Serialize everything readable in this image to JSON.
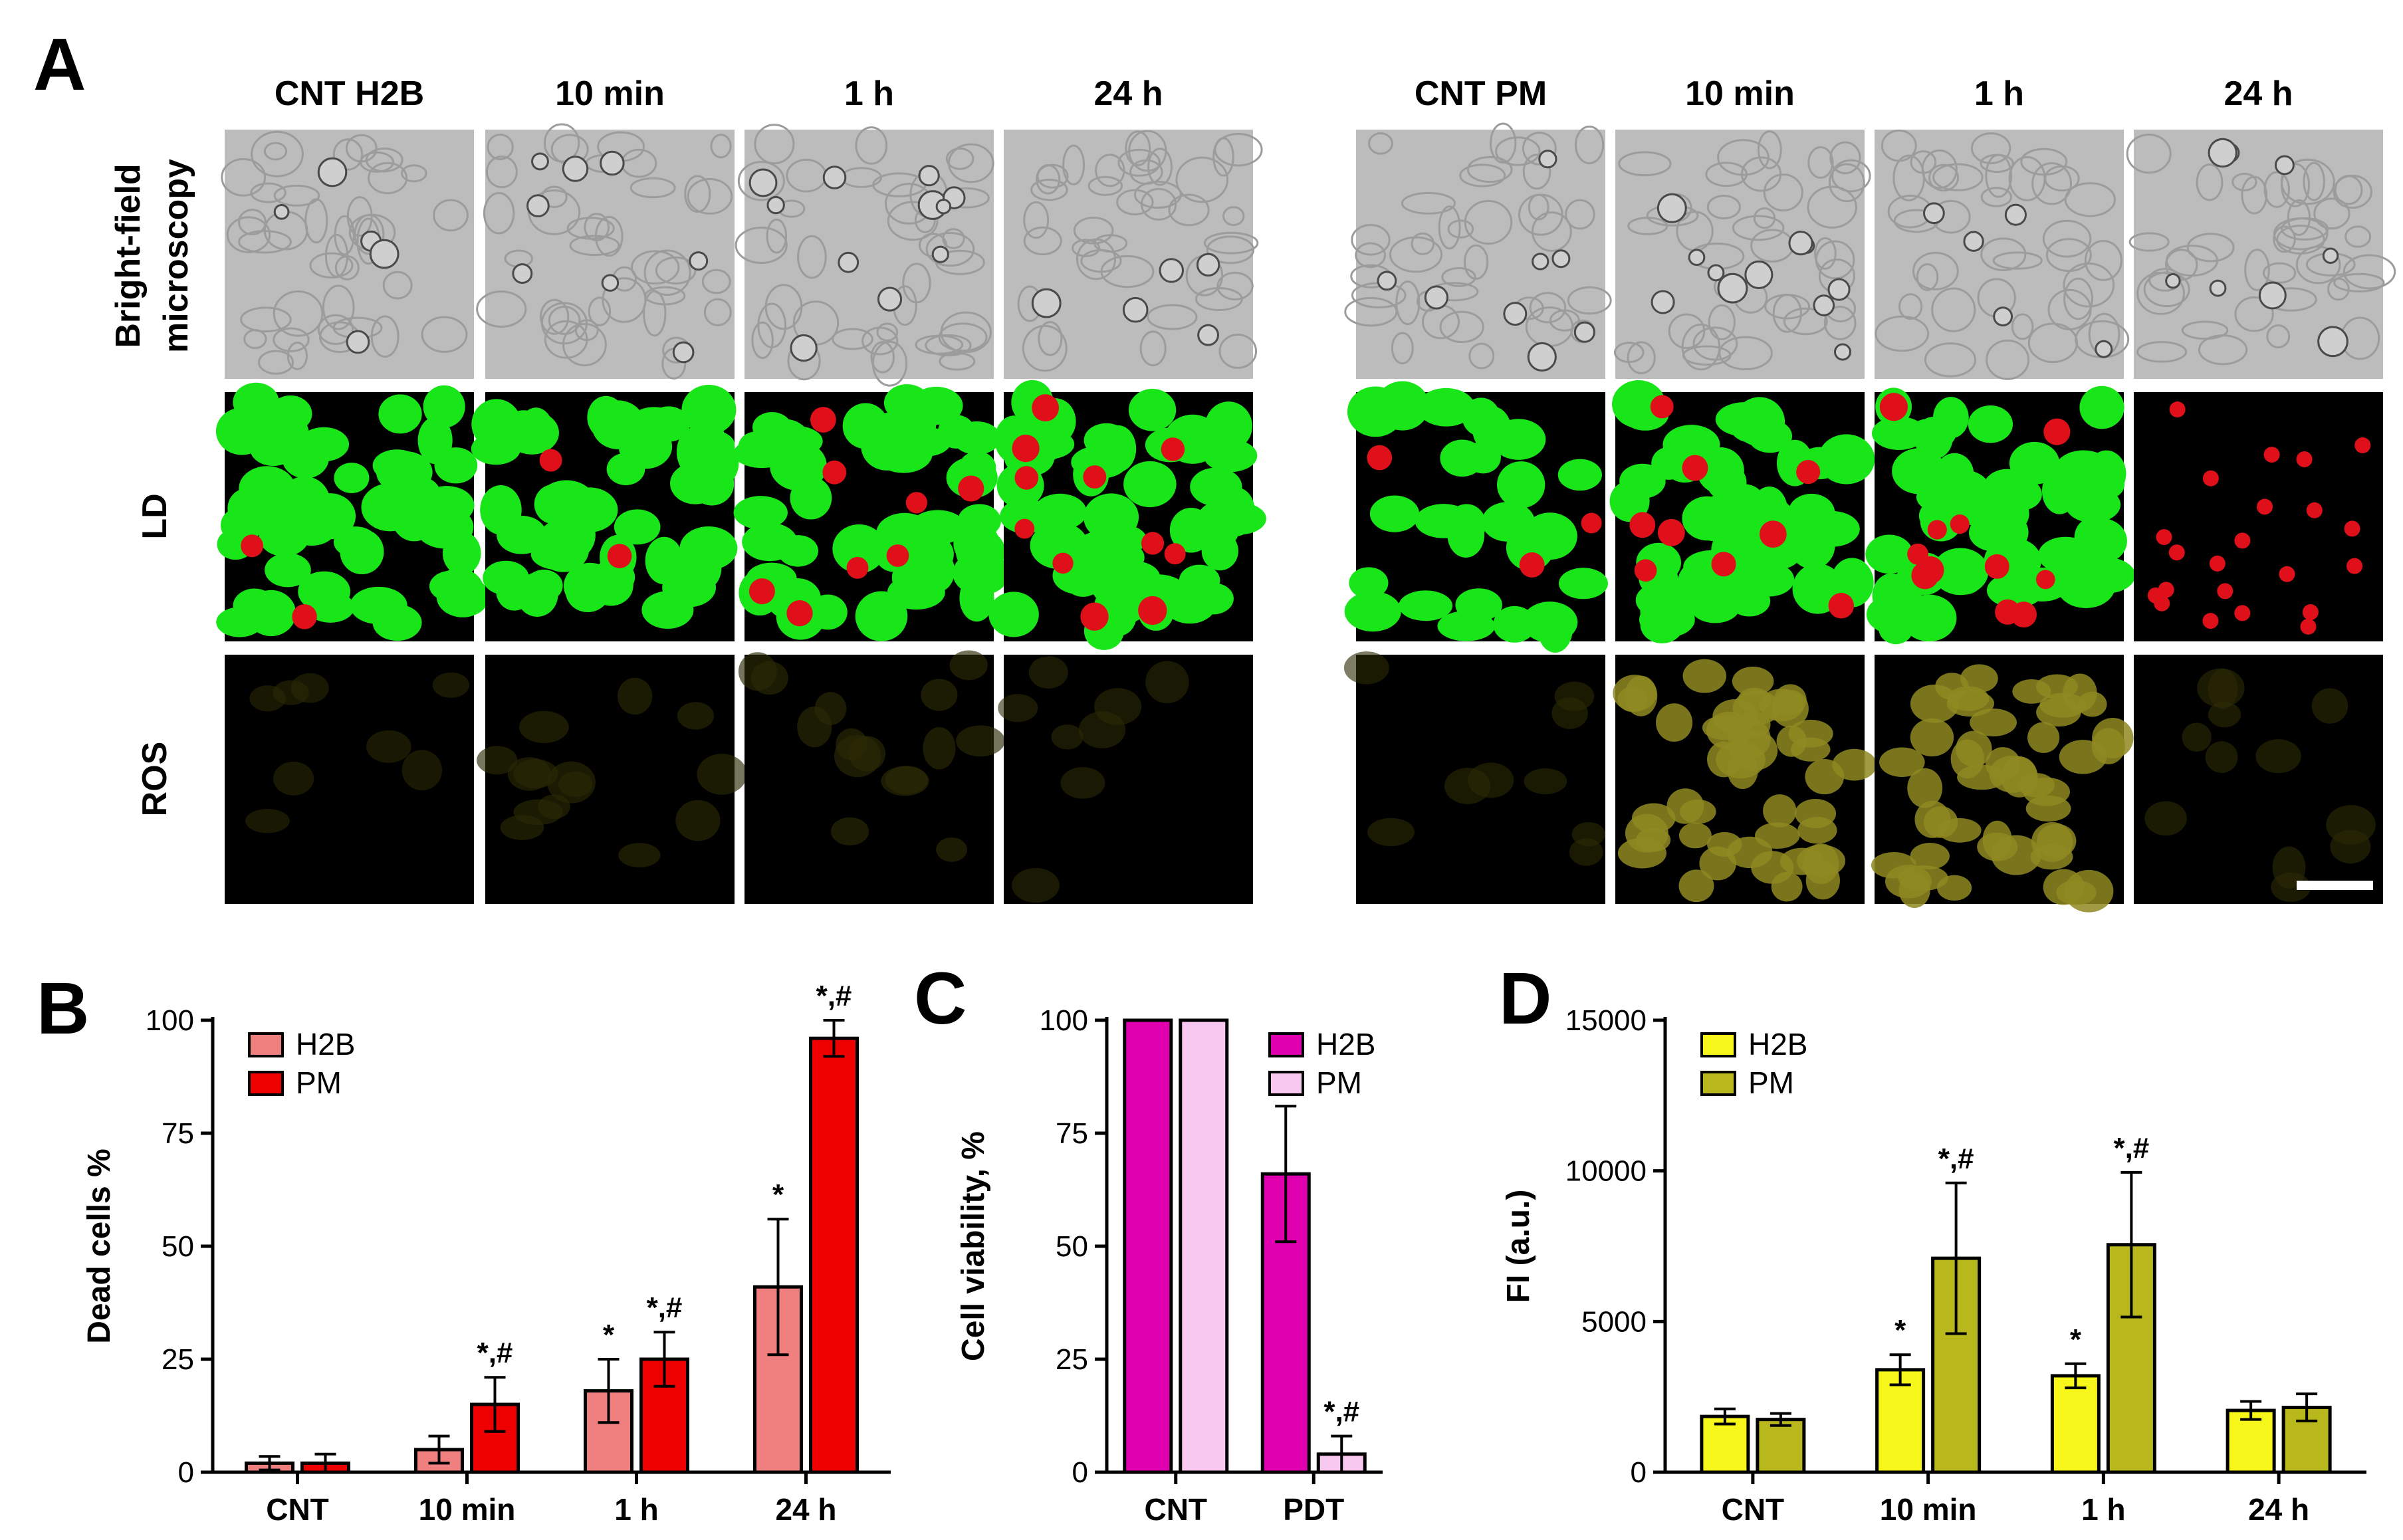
{
  "panel_letters": [
    "A",
    "B",
    "C",
    "D"
  ],
  "panel_a": {
    "left_headers": [
      "CNT H2B",
      "10 min",
      "1 h",
      "24 h"
    ],
    "right_headers": [
      "CNT PM",
      "10 min",
      "1 h",
      "24 h"
    ],
    "row_labels": [
      "Bright-field",
      "microscopy",
      "LD",
      "ROS"
    ],
    "colors": {
      "live": "#19e619",
      "dead": "#e0101a",
      "ros_low": "#2b2a05",
      "ros_high": "#8f8a22"
    }
  },
  "chart_data": [
    {
      "panel": "B",
      "type": "bar",
      "categories": [
        "CNT",
        "10 min",
        "1 h",
        "24 h"
      ],
      "series": [
        {
          "name": "H2B",
          "color": "#f08080",
          "values": [
            2,
            5,
            18,
            41
          ],
          "errors": [
            1.5,
            3,
            7,
            15
          ],
          "annotations": [
            "",
            "",
            "*",
            "*"
          ]
        },
        {
          "name": "PM",
          "color": "#ee0000",
          "values": [
            2,
            15,
            25,
            96
          ],
          "errors": [
            2,
            6,
            6,
            4
          ],
          "annotations": [
            "",
            "*,#",
            "*,#",
            "*,#"
          ]
        }
      ],
      "xlabel": "",
      "ylabel": "Dead cells %",
      "ylim": [
        0,
        100
      ],
      "yticks": [
        0,
        25,
        50,
        75,
        100
      ],
      "legend": "top-left"
    },
    {
      "panel": "C",
      "type": "bar",
      "categories": [
        "CNT",
        "PDT"
      ],
      "series": [
        {
          "name": "H2B",
          "color": "#e000b0",
          "values": [
            100,
            66
          ],
          "errors": [
            0,
            15
          ],
          "annotations": [
            "",
            "*"
          ]
        },
        {
          "name": "PM",
          "color": "#f9c8f0",
          "values": [
            100,
            4
          ],
          "errors": [
            0,
            4
          ],
          "annotations": [
            "",
            "*,#"
          ]
        }
      ],
      "xlabel": "",
      "ylabel": "Cell  viability, %",
      "ylim": [
        0,
        100
      ],
      "yticks": [
        0,
        25,
        50,
        75,
        100
      ],
      "legend": "top-right"
    },
    {
      "panel": "D",
      "type": "bar",
      "categories": [
        "CNT",
        "10 min",
        "1 h",
        "24 h"
      ],
      "series": [
        {
          "name": "H2B",
          "color": "#f6f61a",
          "values": [
            1850,
            3400,
            3200,
            2050
          ],
          "errors": [
            250,
            500,
            400,
            300
          ],
          "annotations": [
            "",
            "*",
            "*",
            ""
          ]
        },
        {
          "name": "PM",
          "color": "#b8b81c",
          "values": [
            1750,
            7100,
            7550,
            2150
          ],
          "errors": [
            200,
            2500,
            2400,
            450
          ],
          "annotations": [
            "",
            "*,#",
            "*,#",
            ""
          ]
        }
      ],
      "xlabel": "",
      "ylabel": "FI (a.u.)",
      "ylim": [
        0,
        15000
      ],
      "yticks": [
        0,
        5000,
        10000,
        15000
      ],
      "legend": "top-left"
    }
  ]
}
